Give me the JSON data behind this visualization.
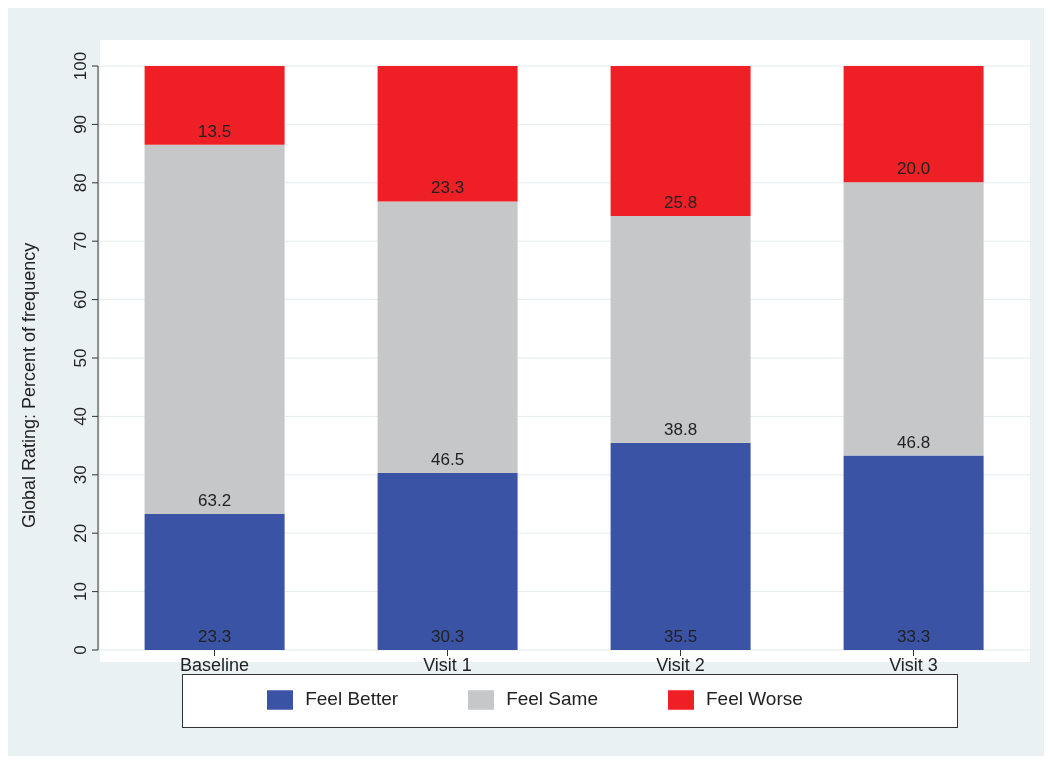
{
  "chart_data": {
    "type": "bar",
    "stacked": true,
    "ylabel": "Global Rating: Percent of frequency",
    "categories": [
      "Baseline",
      "Visit 1",
      "Visit 2",
      "Visit 3"
    ],
    "series": [
      {
        "name": "Feel Better",
        "color": "#3a53a4",
        "values": [
          23.3,
          30.3,
          35.5,
          33.3
        ],
        "value_labels": [
          "23.3",
          "30.3",
          "35.5",
          "33.3"
        ]
      },
      {
        "name": "Feel Same",
        "color": "#c6c7c9",
        "values": [
          63.2,
          46.5,
          38.8,
          46.8
        ],
        "value_labels": [
          "63.2",
          "46.5",
          "38.8",
          "46.8"
        ]
      },
      {
        "name": "Feel Worse",
        "color": "#ee2026",
        "values": [
          13.5,
          23.3,
          25.8,
          20.0
        ],
        "value_labels": [
          "13.5",
          "23.3",
          "25.8",
          "20.0"
        ]
      }
    ],
    "ylim": [
      0,
      100
    ],
    "yticks": [
      0,
      10,
      20,
      30,
      40,
      50,
      60,
      70,
      80,
      90,
      100
    ],
    "grid": "y",
    "legend": "bottom"
  }
}
